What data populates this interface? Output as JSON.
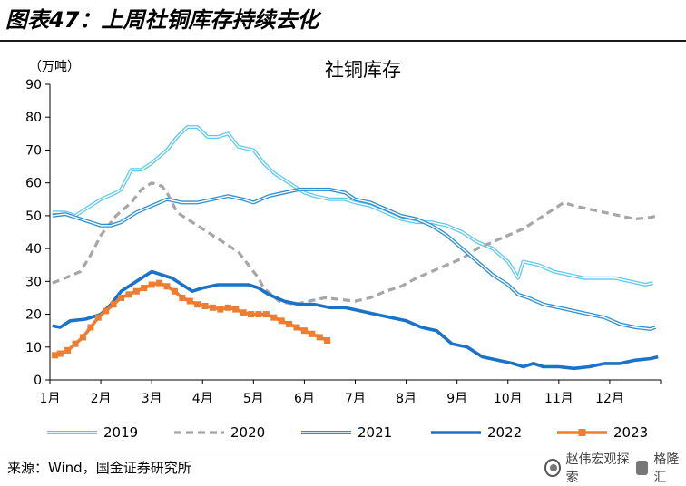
{
  "figure_title": "图表47：上周社铜库存持续去化",
  "source": "来源：Wind，国金证券研究所",
  "watermark": {
    "line1": "赵伟宏观探索",
    "line2": "格隆汇"
  },
  "colors": {
    "s2019": "#5fc9f0",
    "s2020": "#a6a6a6",
    "s2021": "#2e8fd0",
    "s2022": "#1a73c8",
    "s2023": "#ed7d31"
  },
  "chart_data": {
    "type": "line",
    "title": "社铜库存",
    "unit_label": "（万吨）",
    "ylim": [
      0,
      90
    ],
    "xlim": [
      1,
      13
    ],
    "y_ticks": [
      0,
      10,
      20,
      30,
      40,
      50,
      60,
      70,
      80,
      90
    ],
    "x_ticks": [
      {
        "value": 1,
        "label": "1月"
      },
      {
        "value": 2,
        "label": "2月"
      },
      {
        "value": 3,
        "label": "3月"
      },
      {
        "value": 4,
        "label": "4月"
      },
      {
        "value": 5,
        "label": "5月"
      },
      {
        "value": 6,
        "label": "6月"
      },
      {
        "value": 7,
        "label": "7月"
      },
      {
        "value": 8,
        "label": "8月"
      },
      {
        "value": 9,
        "label": "9月"
      },
      {
        "value": 10,
        "label": "10月"
      },
      {
        "value": 11,
        "label": "11月"
      },
      {
        "value": 12,
        "label": "12月"
      }
    ],
    "legend_position": "bottom",
    "grid": false,
    "series": [
      {
        "name": "2019",
        "style": "double",
        "color_key": "s2019",
        "x": [
          1.05,
          1.3,
          1.5,
          1.7,
          2.0,
          2.3,
          2.4,
          2.6,
          2.8,
          3.0,
          3.3,
          3.5,
          3.7,
          3.9,
          4.1,
          4.3,
          4.5,
          4.7,
          5.0,
          5.2,
          5.4,
          5.7,
          6.0,
          6.2,
          6.5,
          6.8,
          7.0,
          7.3,
          7.6,
          7.9,
          8.2,
          8.5,
          8.8,
          9.1,
          9.4,
          9.7,
          10.0,
          10.2,
          10.3,
          10.6,
          10.9,
          11.2,
          11.5,
          11.8,
          12.1,
          12.4,
          12.7,
          12.85
        ],
        "y": [
          51,
          51,
          50,
          52,
          55,
          57,
          58,
          64,
          64,
          66,
          70,
          74,
          77,
          77,
          74,
          74,
          75,
          71,
          70,
          66,
          63,
          60,
          57,
          56,
          55,
          55,
          54,
          53,
          51,
          49,
          48,
          48,
          47,
          45,
          42,
          40,
          36,
          31,
          36,
          35,
          33,
          32,
          31,
          31,
          31,
          30,
          29,
          29.5
        ]
      },
      {
        "name": "2020",
        "style": "dashed",
        "color_key": "s2020",
        "x": [
          1.05,
          1.3,
          1.6,
          1.8,
          2.0,
          2.3,
          2.6,
          2.8,
          3.0,
          3.2,
          3.3,
          3.5,
          3.8,
          4.1,
          4.4,
          4.7,
          4.9,
          5.1,
          5.2,
          5.5,
          5.8,
          6.1,
          6.4,
          6.7,
          7.0,
          7.3,
          7.6,
          7.9,
          8.2,
          8.5,
          8.8,
          9.1,
          9.4,
          9.7,
          10.0,
          10.3,
          10.6,
          10.9,
          11.1,
          11.3,
          11.6,
          11.9,
          12.2,
          12.5,
          12.8,
          12.95
        ],
        "y": [
          29.5,
          31,
          33,
          38,
          44,
          50,
          54,
          58,
          60,
          59,
          57,
          51,
          48,
          45,
          42,
          39,
          35,
          31,
          28,
          24,
          23,
          24,
          25,
          24.5,
          24,
          25,
          27,
          28.5,
          31,
          33,
          35,
          37,
          40,
          42,
          44,
          46,
          49,
          52,
          54,
          53,
          52,
          51,
          50,
          49,
          49.5,
          50
        ]
      },
      {
        "name": "2021",
        "style": "double",
        "color_key": "s2021",
        "x": [
          1.05,
          1.3,
          1.6,
          1.8,
          2.0,
          2.2,
          2.4,
          2.7,
          3.0,
          3.3,
          3.6,
          3.9,
          4.2,
          4.5,
          4.8,
          5.0,
          5.3,
          5.6,
          5.9,
          6.2,
          6.5,
          6.8,
          7.0,
          7.3,
          7.6,
          7.9,
          8.2,
          8.5,
          8.8,
          9.1,
          9.4,
          9.7,
          10.0,
          10.2,
          10.4,
          10.7,
          11.0,
          11.3,
          11.6,
          11.9,
          12.2,
          12.5,
          12.8,
          12.9
        ],
        "y": [
          50,
          50.5,
          49,
          48,
          47,
          47,
          48,
          51,
          53,
          55,
          54,
          54,
          55,
          56,
          55,
          54,
          56,
          57,
          58,
          58,
          58,
          57,
          55,
          54,
          52,
          50,
          49,
          47,
          44,
          40,
          36,
          32,
          29,
          26,
          25,
          23,
          22,
          21,
          20,
          19,
          17,
          16,
          15.5,
          16
        ]
      },
      {
        "name": "2022",
        "style": "solid",
        "color_key": "s2022",
        "x": [
          1.05,
          1.2,
          1.4,
          1.7,
          2.0,
          2.2,
          2.4,
          2.6,
          2.8,
          3.0,
          3.2,
          3.4,
          3.6,
          3.8,
          4.0,
          4.3,
          4.6,
          4.9,
          5.1,
          5.3,
          5.6,
          5.9,
          6.2,
          6.5,
          6.8,
          7.1,
          7.4,
          7.7,
          8.0,
          8.3,
          8.6,
          8.9,
          9.2,
          9.5,
          9.8,
          10.1,
          10.3,
          10.5,
          10.7,
          11.0,
          11.3,
          11.6,
          11.9,
          12.2,
          12.5,
          12.8,
          12.95
        ],
        "y": [
          16.5,
          16,
          18,
          18.5,
          20,
          23,
          27,
          29,
          31,
          33,
          32,
          31,
          29,
          27,
          28,
          29,
          29,
          29,
          28,
          26,
          24,
          23,
          23,
          22,
          22,
          21,
          20,
          19,
          18,
          16,
          15,
          11,
          10,
          7,
          6,
          5,
          4,
          5,
          4,
          4,
          3.5,
          4,
          5,
          5,
          6,
          6.5,
          7
        ]
      },
      {
        "name": "2023",
        "style": "marker",
        "color_key": "s2023",
        "x": [
          1.1,
          1.2,
          1.35,
          1.5,
          1.65,
          1.8,
          1.95,
          2.1,
          2.25,
          2.4,
          2.55,
          2.7,
          2.85,
          3.0,
          3.15,
          3.3,
          3.45,
          3.6,
          3.75,
          3.9,
          4.05,
          4.2,
          4.35,
          4.5,
          4.65,
          4.8,
          4.95,
          5.1,
          5.25,
          5.4,
          5.55,
          5.7,
          5.85,
          6.0,
          6.15,
          6.3,
          6.45
        ],
        "y": [
          7.5,
          8,
          9,
          11,
          13,
          16,
          19,
          21,
          23,
          25,
          26,
          27,
          28,
          29,
          29.5,
          28.5,
          27,
          25,
          24,
          23,
          22.5,
          22,
          21.5,
          22,
          21.5,
          20.5,
          20,
          20,
          20,
          19,
          18,
          17,
          16,
          15,
          14,
          13,
          12
        ]
      }
    ]
  }
}
